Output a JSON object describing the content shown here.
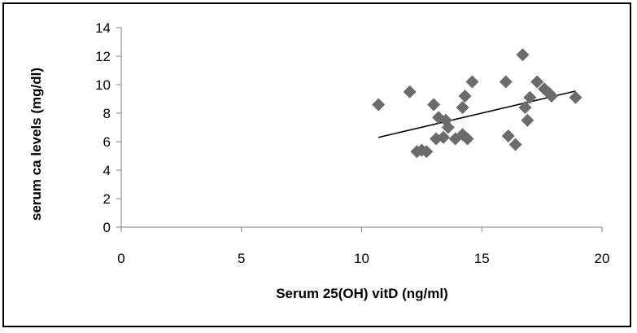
{
  "chart_data": {
    "type": "scatter",
    "title": "",
    "xlabel": "Serum 25(OH) vitD (ng/ml)",
    "ylabel": "serum ca levels (mg/dl)",
    "xlim": [
      0,
      20
    ],
    "ylim": [
      0,
      14
    ],
    "x_ticks": [
      0,
      5,
      10,
      15,
      20
    ],
    "y_ticks": [
      0,
      2,
      4,
      6,
      8,
      10,
      12,
      14
    ],
    "grid": false,
    "legend": "none",
    "marker": "diamond",
    "marker_color": "#6b6b6b",
    "points": [
      {
        "x": 10.7,
        "y": 8.6
      },
      {
        "x": 12.0,
        "y": 9.5
      },
      {
        "x": 12.3,
        "y": 5.3
      },
      {
        "x": 12.5,
        "y": 5.4
      },
      {
        "x": 12.7,
        "y": 5.3
      },
      {
        "x": 13.0,
        "y": 8.6
      },
      {
        "x": 13.1,
        "y": 6.2
      },
      {
        "x": 13.2,
        "y": 7.7
      },
      {
        "x": 13.4,
        "y": 6.3
      },
      {
        "x": 13.5,
        "y": 7.5
      },
      {
        "x": 13.6,
        "y": 7.0
      },
      {
        "x": 13.9,
        "y": 6.2
      },
      {
        "x": 14.2,
        "y": 8.4
      },
      {
        "x": 14.2,
        "y": 6.5
      },
      {
        "x": 14.3,
        "y": 9.2
      },
      {
        "x": 14.4,
        "y": 6.2
      },
      {
        "x": 14.6,
        "y": 10.2
      },
      {
        "x": 16.0,
        "y": 10.2
      },
      {
        "x": 16.1,
        "y": 6.4
      },
      {
        "x": 16.4,
        "y": 5.8
      },
      {
        "x": 16.7,
        "y": 12.1
      },
      {
        "x": 16.8,
        "y": 8.4
      },
      {
        "x": 16.9,
        "y": 7.5
      },
      {
        "x": 17.0,
        "y": 9.1
      },
      {
        "x": 17.3,
        "y": 10.2
      },
      {
        "x": 17.6,
        "y": 9.7
      },
      {
        "x": 17.8,
        "y": 9.4
      },
      {
        "x": 17.9,
        "y": 9.2
      },
      {
        "x": 18.9,
        "y": 9.1
      }
    ],
    "trendline": {
      "x": [
        10.7,
        18.9
      ],
      "y": [
        6.3,
        9.55
      ],
      "color": "#000000"
    }
  }
}
